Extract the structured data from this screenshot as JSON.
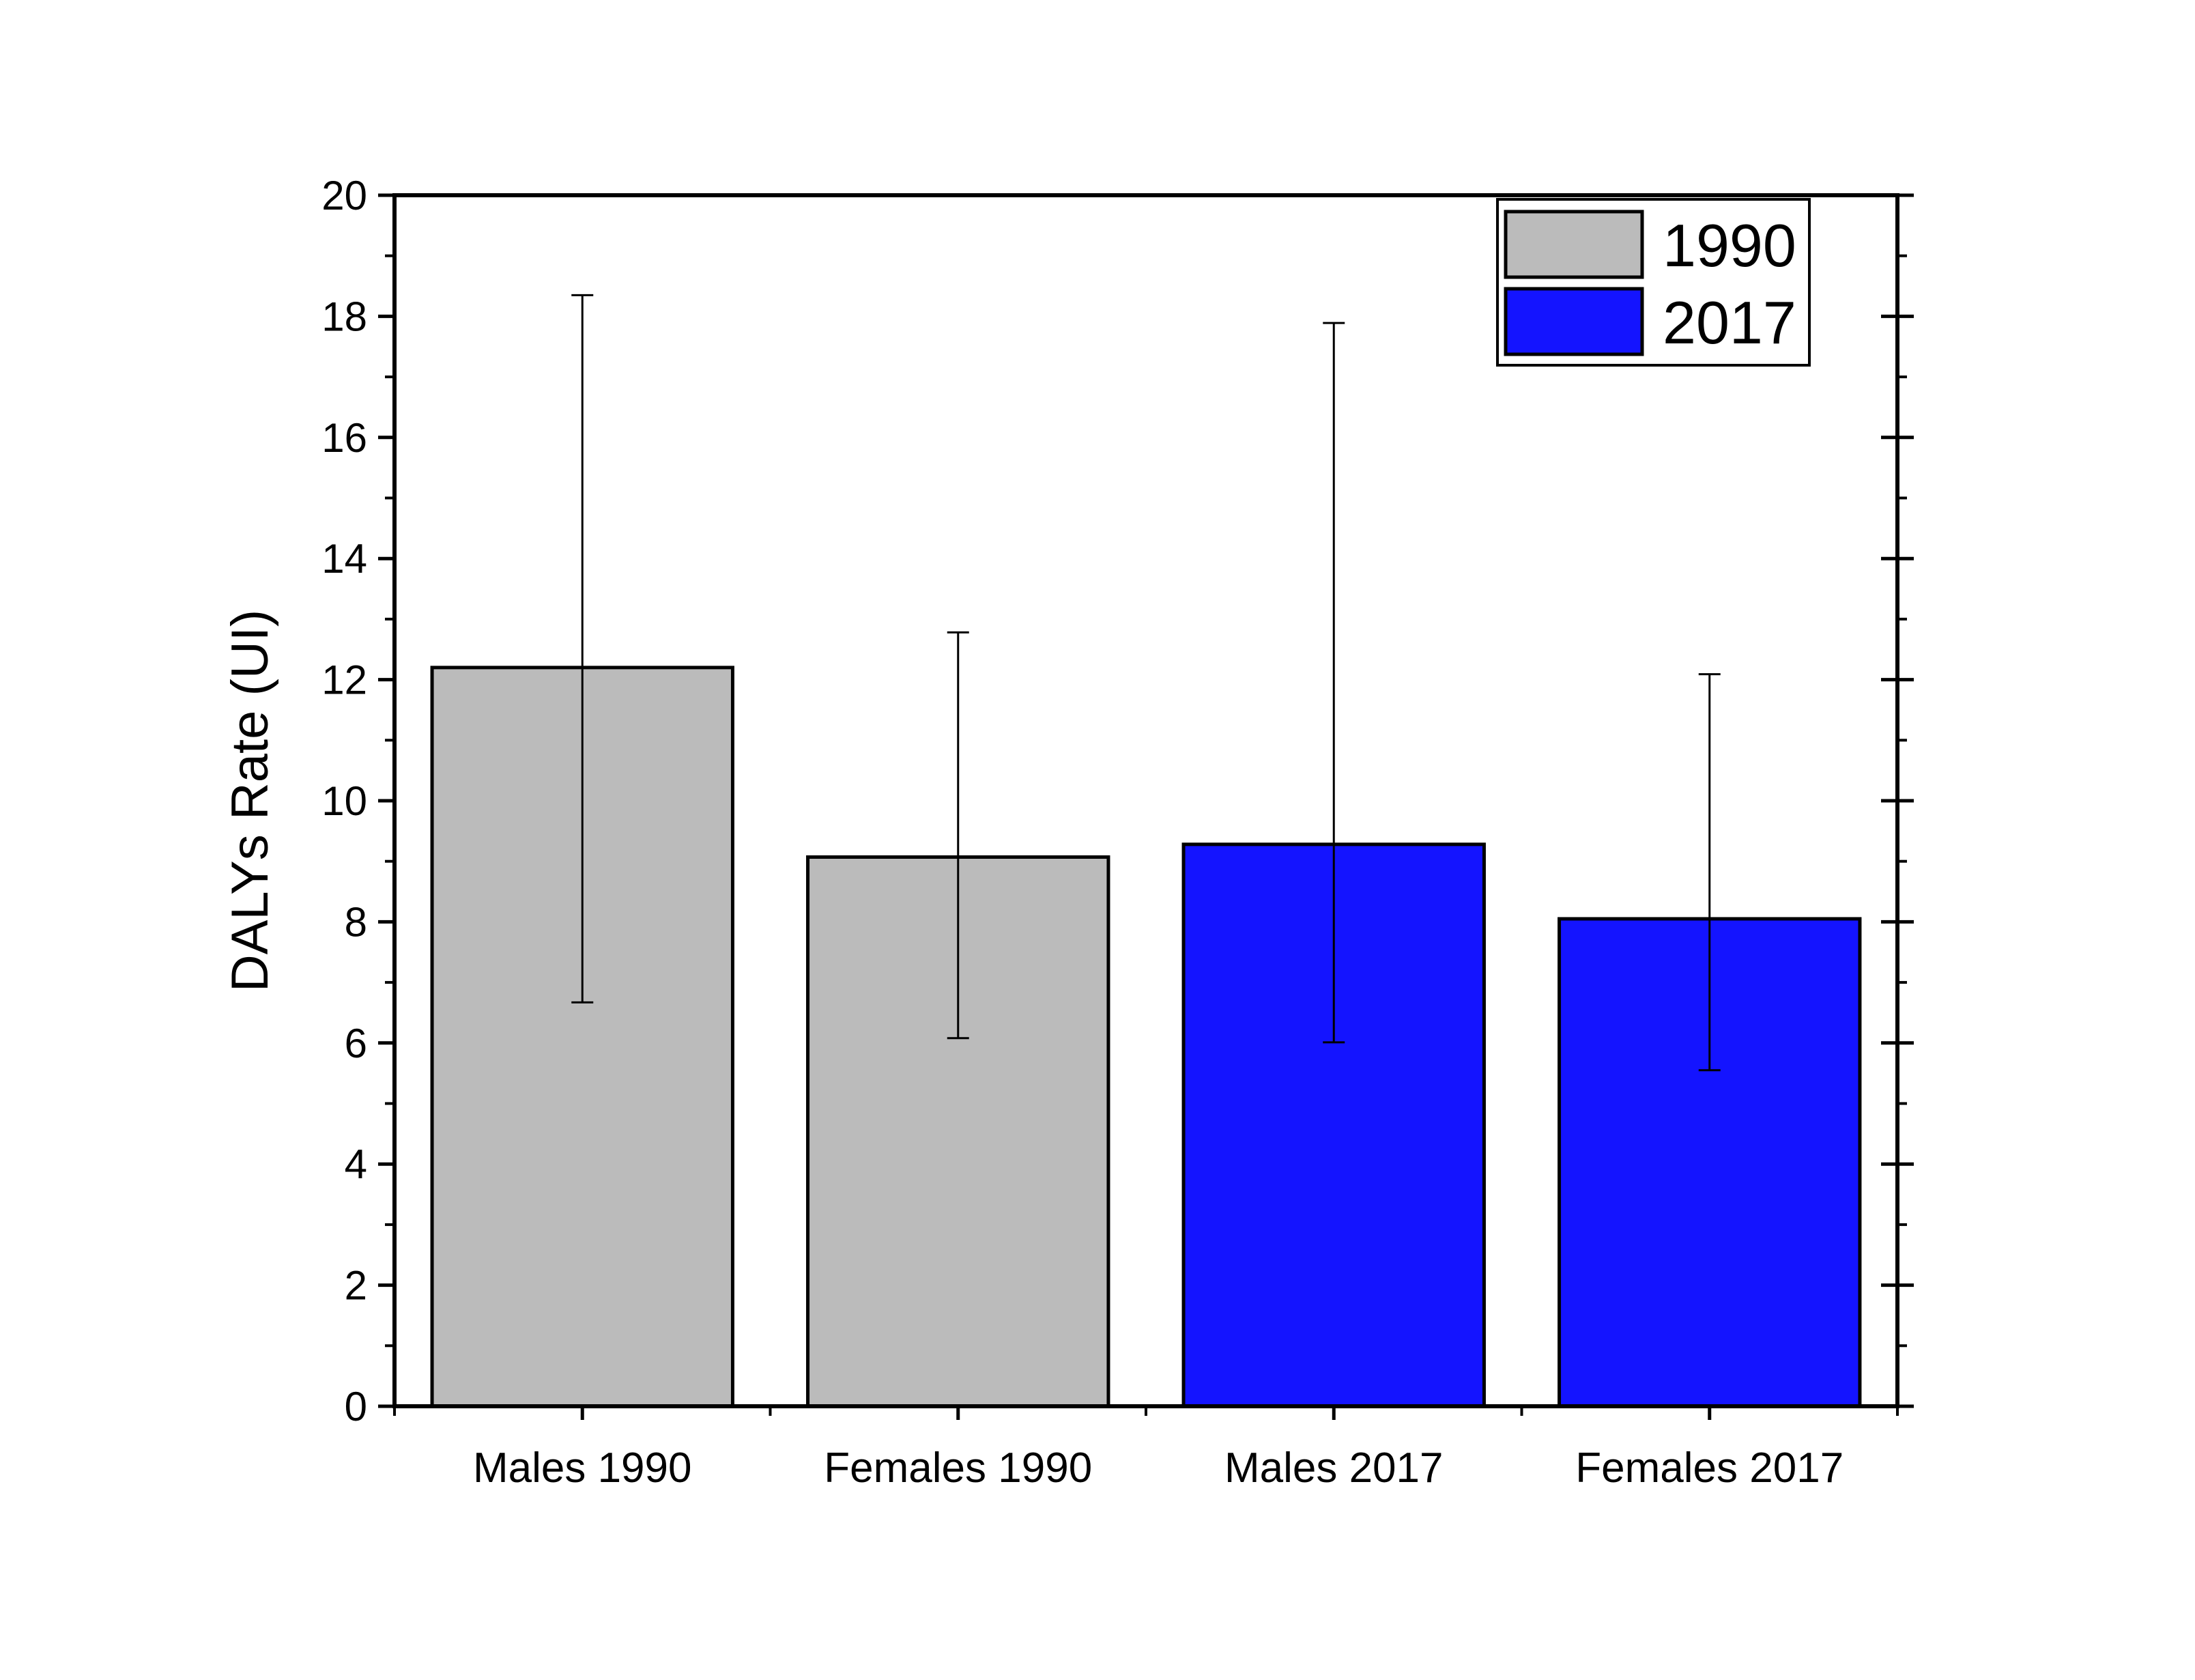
{
  "chart_data": {
    "type": "bar",
    "title": "",
    "xlabel": "",
    "ylabel": "DALYs Rate (UI)",
    "ylim": [
      0,
      20
    ],
    "yticks": [
      0,
      2,
      4,
      6,
      8,
      10,
      12,
      14,
      16,
      18,
      20
    ],
    "grid": false,
    "legend_placement": "top-right",
    "categories": [
      "Males 1990",
      "Females 1990",
      "Males 2017",
      "Females 2017"
    ],
    "values": [
      12.2,
      9.07,
      9.28,
      8.05
    ],
    "error_low": [
      6.67,
      6.08,
      6.01,
      5.55
    ],
    "error_high": [
      18.35,
      12.78,
      17.89,
      12.09
    ],
    "bar_group": [
      "1990",
      "1990",
      "2017",
      "2017"
    ],
    "legend": [
      {
        "label": "1990",
        "color": "#BBBBBB"
      },
      {
        "label": "2017",
        "color": "#1414FF"
      }
    ]
  }
}
